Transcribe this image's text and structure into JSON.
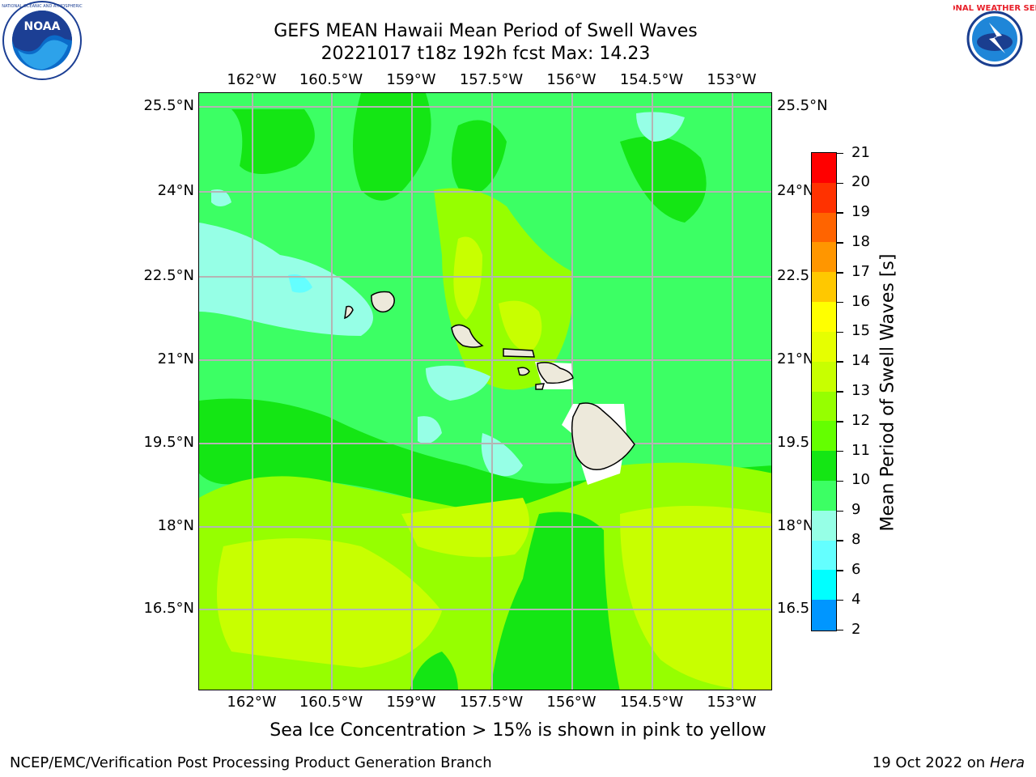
{
  "title": {
    "line1": "GEFS MEAN Hawaii Mean Period of Swell Waves",
    "line2": "20221017 t18z 192h fcst   Max: 14.23"
  },
  "logos": {
    "left": {
      "name": "noaa-logo",
      "text": "NOAA"
    },
    "right": {
      "name": "nws-logo",
      "text": "NATIONAL WEATHER SERVICE"
    }
  },
  "map": {
    "lon_ticks": [
      "162°W",
      "160.5°W",
      "159°W",
      "157.5°W",
      "156°W",
      "154.5°W",
      "153°W"
    ],
    "lat_ticks": [
      "25.5°N",
      "24°N",
      "22.5°N",
      "21°N",
      "19.5°N",
      "18°N",
      "16.5°N"
    ],
    "right_lat_ticks": [
      "25.5°N",
      "24°N",
      "22.5",
      "21°N",
      "19.5",
      "18°N",
      "16.5"
    ],
    "extent": {
      "lon_min": -163.0,
      "lon_max": -152.5,
      "lat_min": 15.0,
      "lat_max": 25.8
    },
    "grid_color": "#b4b4b4",
    "land_color": "#ede9db",
    "islands": [
      "Kauai",
      "Niihau",
      "Oahu",
      "Molokai",
      "Lanai",
      "Maui",
      "Kahoolawe",
      "Hawaii"
    ]
  },
  "colorbar": {
    "label": "Mean Period of Swell Waves [s]",
    "ticks": [
      "21",
      "20",
      "19",
      "18",
      "17",
      "16",
      "15",
      "14",
      "13",
      "12",
      "11",
      "10",
      "9",
      "8",
      "6",
      "4",
      "2"
    ],
    "colors_top_to_bottom": [
      "#ff0000",
      "#ff3200",
      "#ff6400",
      "#ff9600",
      "#ffc800",
      "#ffff00",
      "#e6ff00",
      "#c8ff00",
      "#96ff00",
      "#64ff00",
      "#14e614",
      "#3cff64",
      "#96ffe6",
      "#64ffff",
      "#00ffff",
      "#0096ff",
      "#0000ff"
    ]
  },
  "caption": "Sea Ice Concentration > 15% is shown in pink to yellow",
  "footer": {
    "left": "NCEP/EMC/Verification Post Processing Product Generation Branch",
    "right_prefix": "19 Oct 2022 on ",
    "right_host": "Hera"
  }
}
